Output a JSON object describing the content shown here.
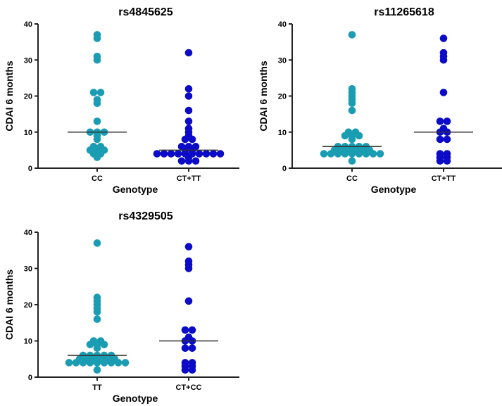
{
  "chart_data": [
    {
      "type": "scatter",
      "title": "rs4845625",
      "xlabel": "Genotype",
      "ylabel": "CDAI 6 months",
      "ylim": [
        0,
        40
      ],
      "yticks": [
        "0",
        "10",
        "20",
        "30",
        "40"
      ],
      "categories": [
        "CC",
        "CT+TT"
      ],
      "series": [
        {
          "name": "CC",
          "color": "#1a9db3",
          "median": 10,
          "values": [
            37,
            36,
            31,
            30,
            21,
            21,
            19,
            18,
            13,
            10,
            10,
            10,
            9,
            8,
            6,
            6,
            5,
            5,
            5,
            4,
            4,
            3
          ]
        },
        {
          "name": "CT+TT",
          "color": "#0b0bc8",
          "median": 5,
          "values": [
            32,
            22,
            20,
            16,
            13,
            11,
            10,
            9,
            8,
            8,
            6,
            6,
            6,
            5,
            5,
            4,
            4,
            4,
            4,
            4,
            4,
            4,
            4,
            4,
            4,
            3,
            2,
            2,
            2
          ]
        }
      ]
    },
    {
      "type": "scatter",
      "title": "rs11265618",
      "xlabel": "Genotype",
      "ylabel": "CDAI 6 months",
      "ylim": [
        0,
        40
      ],
      "yticks": [
        "0",
        "10",
        "20",
        "30",
        "40"
      ],
      "categories": [
        "CC",
        "CT+TT"
      ],
      "series": [
        {
          "name": "CC",
          "color": "#1a9db3",
          "median": 6,
          "values": [
            37,
            22,
            21,
            20,
            19,
            18,
            16,
            10,
            10,
            9,
            9,
            9,
            8,
            6,
            6,
            6,
            6,
            6,
            5,
            5,
            5,
            5,
            5,
            5,
            4,
            4,
            4,
            4,
            4,
            4,
            4,
            4,
            4,
            2
          ]
        },
        {
          "name": "CT+TT",
          "color": "#0b0bc8",
          "median": 10,
          "values": [
            36,
            32,
            31,
            30,
            21,
            13,
            13,
            11,
            10,
            10,
            8,
            8,
            4,
            4,
            3,
            3,
            2,
            2
          ]
        }
      ]
    },
    {
      "type": "scatter",
      "title": "rs4329505",
      "xlabel": "Genotype",
      "ylabel": "CDAI 6 months",
      "ylim": [
        0,
        40
      ],
      "yticks": [
        "0",
        "10",
        "20",
        "30",
        "40"
      ],
      "categories": [
        "TT",
        "CT+CC"
      ],
      "series": [
        {
          "name": "TT",
          "color": "#1a9db3",
          "median": 6,
          "values": [
            37,
            22,
            21,
            20,
            19,
            18,
            16,
            10,
            10,
            9,
            9,
            9,
            8,
            6,
            6,
            6,
            6,
            6,
            5,
            5,
            5,
            5,
            5,
            5,
            4,
            4,
            4,
            4,
            4,
            4,
            4,
            4,
            4,
            2
          ]
        },
        {
          "name": "CT+CC",
          "color": "#0b0bc8",
          "median": 10,
          "values": [
            36,
            32,
            31,
            30,
            21,
            13,
            13,
            11,
            10,
            10,
            8,
            8,
            4,
            4,
            3,
            3,
            2,
            2
          ]
        }
      ]
    }
  ]
}
